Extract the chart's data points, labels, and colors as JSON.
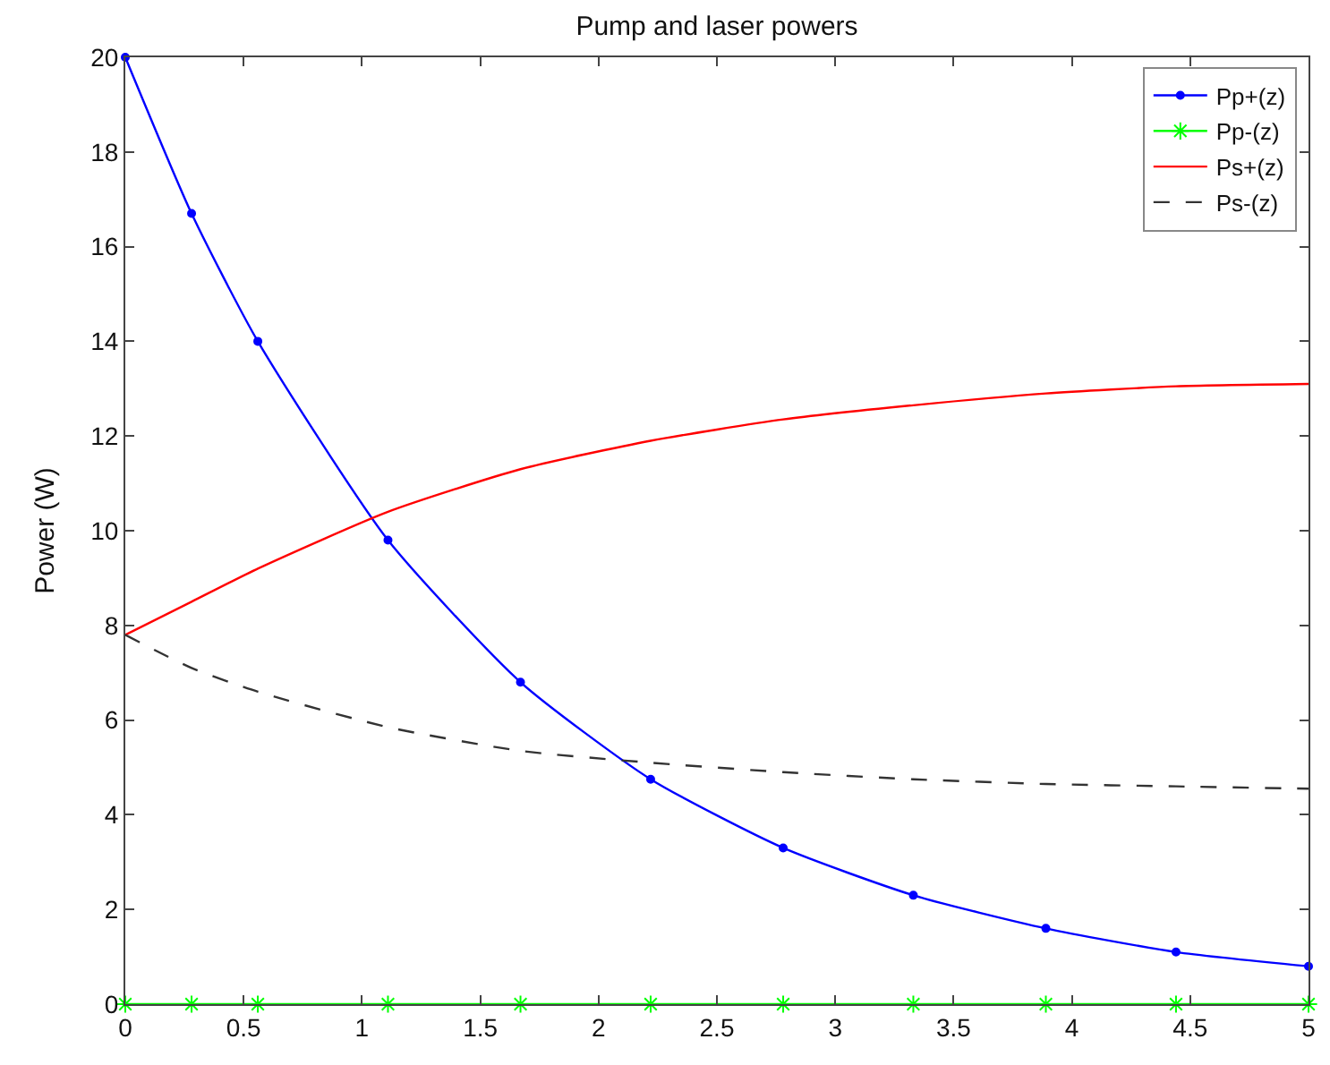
{
  "chart_data": {
    "type": "line",
    "title": "Pump and laser powers",
    "ylabel": "Power (W)",
    "x": [
      0,
      0.28,
      0.56,
      1.11,
      1.67,
      2.22,
      2.78,
      3.33,
      3.89,
      4.44,
      5
    ],
    "series": [
      {
        "name": "Pp+(z)",
        "color": "#0000ff",
        "marker": "circle",
        "line_style": "solid",
        "values": [
          20,
          16.7,
          14.0,
          9.8,
          6.8,
          4.75,
          3.3,
          2.3,
          1.6,
          1.1,
          0.8
        ]
      },
      {
        "name": "Pp-(z)",
        "color": "#00ff00",
        "marker": "cross",
        "line_style": "solid",
        "values": [
          0,
          0,
          0,
          0,
          0,
          0,
          0,
          0,
          0,
          0,
          0
        ]
      },
      {
        "name": "Ps+(z)",
        "color": "#ff0000",
        "marker": "none",
        "line_style": "solid",
        "values": [
          7.8,
          8.5,
          9.2,
          10.4,
          11.3,
          11.9,
          12.35,
          12.65,
          12.9,
          13.05,
          13.1
        ]
      },
      {
        "name": "Ps-(z)",
        "color": "#333333",
        "marker": "none",
        "line_style": "dashed",
        "values": [
          7.8,
          7.1,
          6.6,
          5.85,
          5.35,
          5.1,
          4.9,
          4.75,
          4.65,
          4.6,
          4.55
        ]
      }
    ],
    "xlim": [
      0,
      5
    ],
    "xticks": [
      0,
      0.5,
      1,
      1.5,
      2,
      2.5,
      3,
      3.5,
      4,
      4.5,
      5
    ],
    "ylim": [
      0,
      20
    ],
    "yticks": [
      0,
      2,
      4,
      6,
      8,
      10,
      12,
      14,
      16,
      18,
      20
    ],
    "grid": false,
    "legend": "top right"
  }
}
